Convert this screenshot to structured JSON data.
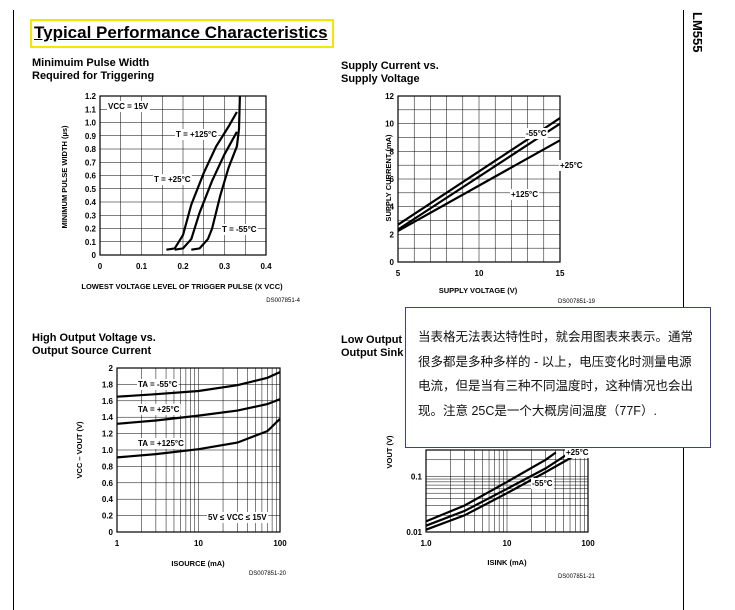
{
  "header": {
    "title": "Typical Performance Characteristics",
    "side_tag": "LM555"
  },
  "tooltip_text": "当表格无法表达特性时，就会用图表来表示。通常很多都是多种多样的 - 以上，电压变化时测量电源电流，但是当有三种不同温度时，这种情况也会出现。注意 25C是一个大概房间温度（77F）.",
  "chart_data": [
    {
      "type": "line",
      "title_lines": [
        "Minimuim Pulse Width",
        "Required for Triggering"
      ],
      "ylabel": "MINIMUM PULSE WIDTH (µs)",
      "xlabel": "LOWEST VOLTAGE LEVEL OF TRIGGER PULSE (X VCC)",
      "xlim": [
        0,
        0.4
      ],
      "ylim": [
        0,
        1.2
      ],
      "x_ticks": [
        "0",
        "0.1",
        "0.2",
        "0.3",
        "0.4"
      ],
      "y_ticks": [
        "0",
        "0.1",
        "0.2",
        "0.3",
        "0.4",
        "0.5",
        "0.6",
        "0.7",
        "0.8",
        "0.9",
        "1.0",
        "1.1",
        "1.2"
      ],
      "annotation": "VCC = 15V",
      "ds_code": "DS007851-4",
      "series": [
        {
          "name": "T = +125°C",
          "points": [
            [
              0.16,
              0.04
            ],
            [
              0.18,
              0.05
            ],
            [
              0.2,
              0.15
            ],
            [
              0.22,
              0.38
            ],
            [
              0.25,
              0.62
            ],
            [
              0.28,
              0.82
            ],
            [
              0.31,
              0.97
            ],
            [
              0.33,
              1.08
            ]
          ]
        },
        {
          "name": "T = +25°C",
          "points": [
            [
              0.18,
              0.04
            ],
            [
              0.2,
              0.05
            ],
            [
              0.22,
              0.12
            ],
            [
              0.24,
              0.32
            ],
            [
              0.27,
              0.56
            ],
            [
              0.3,
              0.76
            ],
            [
              0.33,
              0.93
            ]
          ]
        },
        {
          "name": "T = -55°C",
          "points": [
            [
              0.22,
              0.04
            ],
            [
              0.24,
              0.05
            ],
            [
              0.26,
              0.12
            ],
            [
              0.27,
              0.2
            ],
            [
              0.29,
              0.45
            ],
            [
              0.31,
              0.66
            ],
            [
              0.33,
              0.82
            ],
            [
              0.335,
              0.95
            ],
            [
              0.337,
              1.2
            ]
          ]
        }
      ]
    },
    {
      "type": "line",
      "title_lines": [
        "Supply Current vs.",
        "Supply Voltage"
      ],
      "ylabel": "SUPPLY CURRENT (mA)",
      "xlabel": "SUPPLY VOLTAGE (V)",
      "xlim": [
        5,
        15
      ],
      "ylim": [
        0,
        12
      ],
      "x_ticks": [
        "5",
        "10",
        "15"
      ],
      "y_ticks": [
        "0",
        "2",
        "4",
        "6",
        "8",
        "10",
        "12"
      ],
      "ds_code": "DS007851-19",
      "series": [
        {
          "name": "-55°C",
          "points": [
            [
              5,
              2.7
            ],
            [
              15,
              10.4
            ]
          ]
        },
        {
          "name": "+25°C",
          "points": [
            [
              5,
              2.35
            ],
            [
              15,
              10.0
            ]
          ]
        },
        {
          "name": "+125°C",
          "points": [
            [
              5,
              2.25
            ],
            [
              15,
              8.8
            ]
          ]
        }
      ]
    },
    {
      "type": "line",
      "title_lines": [
        "High Output Voltage vs.",
        "Output Source Current"
      ],
      "ylabel": "VCC – VOUT (V)",
      "xlabel": "ISOURCE (mA)",
      "x_scale": "log",
      "xlim": [
        1,
        100
      ],
      "ylim": [
        0,
        2
      ],
      "x_ticks": [
        "1",
        "10",
        "100"
      ],
      "y_ticks": [
        "0",
        "0.2",
        "0.4",
        "0.6",
        "0.8",
        "1.0",
        "1.2",
        "1.4",
        "1.6",
        "1.8",
        "2"
      ],
      "annotation": "5V ≤ VCC ≤ 15V",
      "ds_code": "DS007851-20",
      "series": [
        {
          "name": "TA = -55°C",
          "points": [
            [
              1,
              1.65
            ],
            [
              3,
              1.68
            ],
            [
              10,
              1.72
            ],
            [
              30,
              1.79
            ],
            [
              70,
              1.88
            ],
            [
              100,
              1.95
            ]
          ]
        },
        {
          "name": "TA = +25°C",
          "points": [
            [
              1,
              1.32
            ],
            [
              3,
              1.36
            ],
            [
              10,
              1.42
            ],
            [
              30,
              1.48
            ],
            [
              70,
              1.56
            ],
            [
              100,
              1.62
            ]
          ]
        },
        {
          "name": "TA = +125°C",
          "points": [
            [
              1,
              0.91
            ],
            [
              3,
              0.95
            ],
            [
              10,
              1.01
            ],
            [
              30,
              1.09
            ],
            [
              70,
              1.23
            ],
            [
              100,
              1.38
            ]
          ]
        }
      ]
    },
    {
      "type": "line",
      "title_lines": [
        "Low Output",
        "Output Sink"
      ],
      "ylabel": "VOUT (V)",
      "xlabel": "ISINK (mA)",
      "x_scale": "log",
      "y_scale": "log",
      "xlim": [
        1,
        100
      ],
      "ylim": [
        0.01,
        0.3
      ],
      "x_ticks": [
        "1.0",
        "10",
        "100"
      ],
      "y_ticks": [
        "0.01",
        "0.1"
      ],
      "ds_code": "DS007851-21",
      "series": [
        {
          "name": "+25°C",
          "points": [
            [
              1,
              0.0155
            ],
            [
              3,
              0.03
            ],
            [
              10,
              0.08
            ],
            [
              30,
              0.2
            ],
            [
              40,
              0.27
            ]
          ]
        },
        {
          "name": "-55°C",
          "points": [
            [
              1,
              0.013
            ],
            [
              3,
              0.024
            ],
            [
              10,
              0.06
            ],
            [
              30,
              0.14
            ],
            [
              60,
              0.27
            ]
          ]
        },
        {
          "name": "",
          "points": [
            [
              1,
              0.011
            ],
            [
              3,
              0.02
            ],
            [
              10,
              0.05
            ],
            [
              30,
              0.12
            ],
            [
              80,
              0.27
            ]
          ]
        }
      ]
    }
  ]
}
